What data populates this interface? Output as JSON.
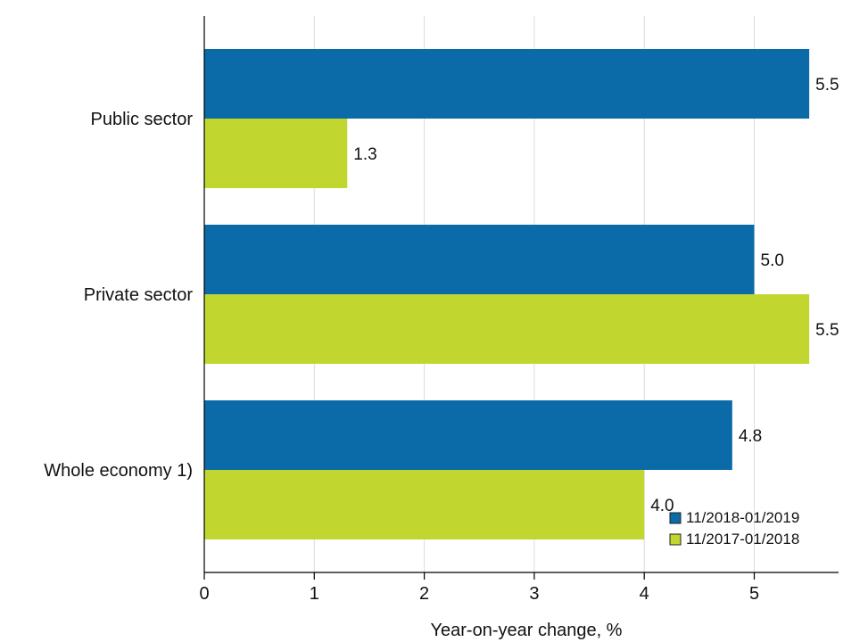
{
  "chart_data": {
    "type": "bar",
    "orientation": "horizontal",
    "categories": [
      "Public sector",
      "Private sector",
      "Whole economy 1)"
    ],
    "series": [
      {
        "name": "11/2018-01/2019",
        "values": [
          5.5,
          5.0,
          4.8
        ],
        "labels": [
          "5.5",
          "5.0",
          "4.8"
        ],
        "color": "#0b6aa8"
      },
      {
        "name": "11/2017-01/2018",
        "values": [
          1.3,
          5.5,
          4.0
        ],
        "labels": [
          "1.3",
          "5.5",
          "4.0"
        ],
        "color": "#c1d72f"
      }
    ],
    "xlabel": "Year-on-year change, %",
    "xlim": [
      0,
      5.5
    ],
    "xticks": [
      0,
      1,
      2,
      3,
      4,
      5
    ],
    "xtick_labels": [
      "0",
      "1",
      "2",
      "3",
      "4",
      "5"
    ],
    "grid": "vertical",
    "legend_position": "bottom-right"
  }
}
